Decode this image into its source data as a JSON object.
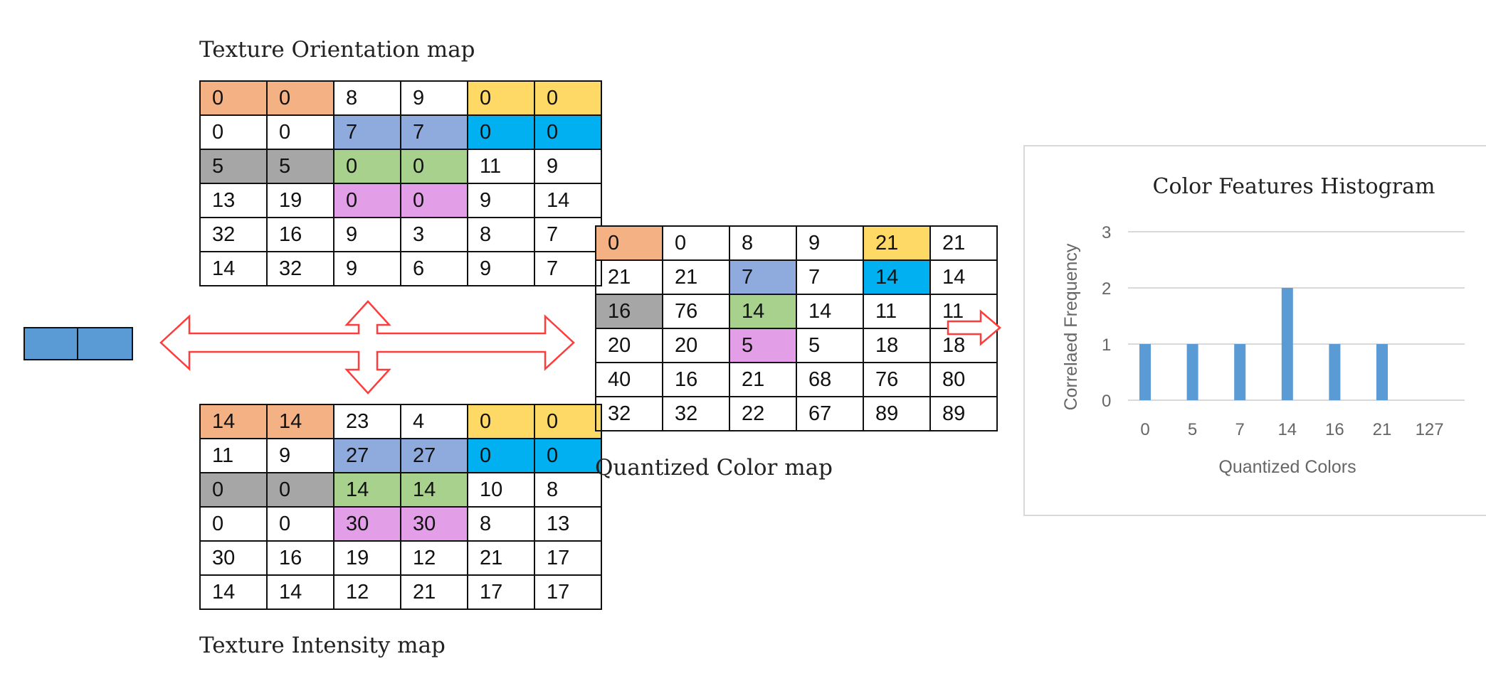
{
  "colors": {
    "orange": "#f4b183",
    "yellow": "#ffd966",
    "lavender": "#8faadc",
    "cyan": "#00b0f0",
    "gray": "#a6a6a6",
    "green": "#a9d18e",
    "pink": "#e39ee8",
    "block_blue": "#5b9bd5",
    "arrow_red": "#ff3b3b",
    "bar_blue": "#5b9bd5"
  },
  "orientation_map": {
    "title": "Texture Orientation map",
    "rows": [
      [
        "0",
        "0",
        "8",
        "9",
        "0",
        "0"
      ],
      [
        "0",
        "0",
        "7",
        "7",
        "0",
        "0"
      ],
      [
        "5",
        "5",
        "0",
        "0",
        "11",
        "9"
      ],
      [
        "13",
        "19",
        "0",
        "0",
        "9",
        "14"
      ],
      [
        "32",
        "16",
        "9",
        "3",
        "8",
        "7"
      ],
      [
        "14",
        "32",
        "9",
        "6",
        "9",
        "7"
      ]
    ],
    "highlights": [
      [
        "orange",
        "orange",
        "",
        "",
        "yellow",
        "yellow"
      ],
      [
        "",
        "",
        "lavender",
        "lavender",
        "cyan",
        "cyan"
      ],
      [
        "gray",
        "gray",
        "green",
        "green",
        "",
        ""
      ],
      [
        "",
        "",
        "pink",
        "pink",
        "",
        ""
      ],
      [
        "",
        "",
        "",
        "",
        "",
        ""
      ],
      [
        "",
        "",
        "",
        "",
        "",
        ""
      ]
    ]
  },
  "intensity_map": {
    "title": "Texture Intensity map",
    "rows": [
      [
        "14",
        "14",
        "23",
        "4",
        "0",
        "0"
      ],
      [
        "11",
        "9",
        "27",
        "27",
        "0",
        "0"
      ],
      [
        "0",
        "0",
        "14",
        "14",
        "10",
        "8"
      ],
      [
        "0",
        "0",
        "30",
        "30",
        "8",
        "13"
      ],
      [
        "30",
        "16",
        "19",
        "12",
        "21",
        "17"
      ],
      [
        "14",
        "14",
        "12",
        "21",
        "17",
        "17"
      ]
    ],
    "highlights": [
      [
        "orange",
        "orange",
        "",
        "",
        "yellow",
        "yellow"
      ],
      [
        "",
        "",
        "lavender",
        "lavender",
        "cyan",
        "cyan"
      ],
      [
        "gray",
        "gray",
        "green",
        "green",
        "",
        ""
      ],
      [
        "",
        "",
        "pink",
        "pink",
        "",
        ""
      ],
      [
        "",
        "",
        "",
        "",
        "",
        ""
      ],
      [
        "",
        "",
        "",
        "",
        "",
        ""
      ]
    ]
  },
  "quantized_map": {
    "title": "Quantized Color map",
    "rows": [
      [
        "0",
        "0",
        "8",
        "9",
        "21",
        "21"
      ],
      [
        "21",
        "21",
        "7",
        "7",
        "14",
        "14"
      ],
      [
        "16",
        "76",
        "14",
        "14",
        "11",
        "11"
      ],
      [
        "20",
        "20",
        "5",
        "5",
        "18",
        "18"
      ],
      [
        "40",
        "16",
        "21",
        "68",
        "76",
        "80"
      ],
      [
        "32",
        "32",
        "22",
        "67",
        "89",
        "89"
      ]
    ],
    "highlights": [
      [
        "orange",
        "",
        "",
        "",
        "yellow",
        ""
      ],
      [
        "",
        "",
        "lavender",
        "",
        "cyan",
        ""
      ],
      [
        "gray",
        "",
        "green",
        "",
        "",
        ""
      ],
      [
        "",
        "",
        "pink",
        "",
        "",
        ""
      ],
      [
        "",
        "",
        "",
        "",
        "",
        ""
      ],
      [
        "",
        "",
        "",
        "",
        "",
        ""
      ]
    ]
  },
  "chart_data": {
    "type": "bar",
    "title": "Color Features Histogram",
    "xlabel": "Quantized Colors",
    "ylabel": "Correlaed Frequency",
    "categories": [
      "0",
      "5",
      "7",
      "14",
      "16",
      "21",
      "127"
    ],
    "values": [
      1,
      1,
      1,
      2,
      1,
      1,
      0
    ],
    "yticks": [
      "0",
      "1",
      "2",
      "3"
    ],
    "ylim": [
      0,
      3
    ],
    "grid": true,
    "legend": "none"
  }
}
